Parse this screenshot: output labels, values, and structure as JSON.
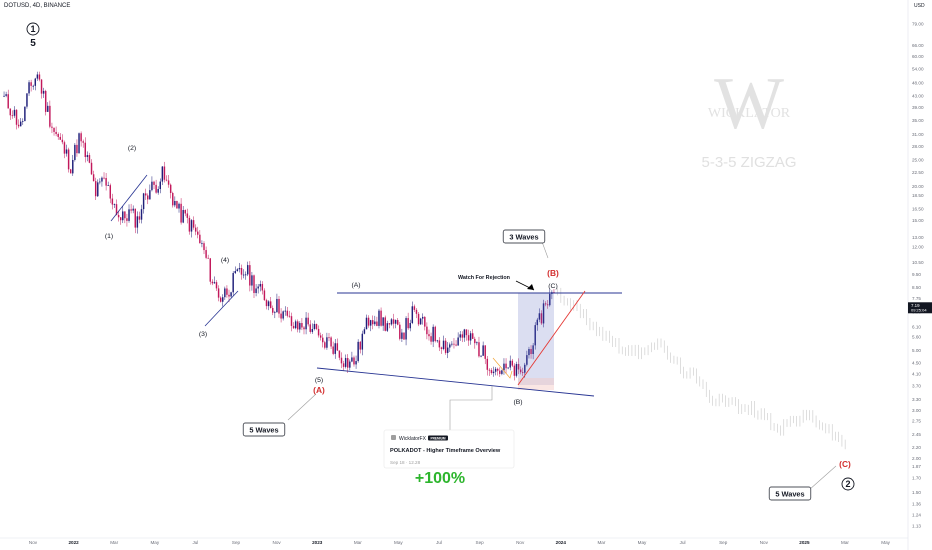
{
  "header": {
    "symbol": "DOTUSD, 4D, BINANCE",
    "currency": "USD"
  },
  "watermark": {
    "brand": "WICKLATOR",
    "pattern": "5-3-5 ZIGZAG"
  },
  "colors": {
    "bull": "#1f1f7a",
    "bear": "#c2185b",
    "wave_red": "#d32f2f",
    "channel": "#283593",
    "trendline": "#e53935",
    "projection": "#c8c8c8",
    "highlight": "#5c6bc0",
    "pct": "#2db52d",
    "axis_text": "#6a6d78"
  },
  "chart_data": {
    "type": "candlestick",
    "y_scale": "log",
    "price_ticks": [
      "79.00",
      "66.00",
      "60.00",
      "54.00",
      "48.00",
      "43.00",
      "39.00",
      "35.00",
      "31.00",
      "28.00",
      "25.00",
      "22.50",
      "20.00",
      "18.50",
      "16.50",
      "15.00",
      "13.00",
      "12.00",
      "10.50",
      "9.50",
      "8.50",
      "7.75",
      "6.90",
      "6.10",
      "5.60",
      "5.00",
      "4.50",
      "4.10",
      "3.70",
      "3.30",
      "3.00",
      "2.75",
      "2.45",
      "2.20",
      "2.00",
      "1.87",
      "1.70",
      "1.50",
      "1.36",
      "1.24",
      "1.13"
    ],
    "time_ticks": [
      "Nov",
      "2022",
      "Mar",
      "May",
      "Jul",
      "Sep",
      "Nov",
      "2023",
      "Mar",
      "May",
      "Jul",
      "Sep",
      "Nov",
      "2024",
      "Mar",
      "May",
      "Jul",
      "Sep",
      "Nov",
      "2025",
      "Mar",
      "May"
    ],
    "current_price": "7.19",
    "countdown": "09:25:04",
    "historical_close": [
      42,
      38,
      33,
      45,
      52,
      40,
      32,
      28,
      24,
      30,
      25,
      19,
      21,
      18,
      15,
      16,
      15,
      19,
      20,
      22,
      19,
      16,
      15,
      13.5,
      11.5,
      9,
      7.8,
      8.5,
      9.4,
      9.8,
      8.8,
      8,
      7.4,
      7.2,
      6.5,
      6,
      6.3,
      6.1,
      5.3,
      5.4,
      5,
      4.55,
      4.5,
      5.6,
      6.8,
      6.5,
      6.2,
      6,
      5.9,
      6.8,
      6.3,
      5.8,
      5.6,
      5.2,
      5.3,
      5.6,
      5.5,
      5.1,
      4.6,
      4.3,
      4.2,
      4.3,
      4.0,
      5.0,
      6.0,
      7.6,
      8.1
    ],
    "projection_close": [
      8.2,
      7.6,
      7,
      6.5,
      6.0,
      5.6,
      5.3,
      5.0,
      4.9,
      5.1,
      5.3,
      5.0,
      4.5,
      4.2,
      4.0,
      3.6,
      3.3,
      3.35,
      3.2,
      3.0,
      3.05,
      2.95,
      2.7,
      2.6,
      2.75,
      2.8,
      2.85,
      2.7,
      2.5,
      2.35,
      2.2
    ],
    "annotations": [
      {
        "label": "1",
        "kind": "circled"
      },
      {
        "label": "5",
        "kind": "bold"
      },
      {
        "label": "(1)"
      },
      {
        "label": "(2)"
      },
      {
        "label": "(3)"
      },
      {
        "label": "(4)"
      },
      {
        "label": "(5)"
      },
      {
        "label": "(A)",
        "kind": "red"
      },
      {
        "label": "(A)"
      },
      {
        "label": "(B)"
      },
      {
        "label": "(C)"
      },
      {
        "label": "(B)",
        "kind": "red"
      },
      {
        "label": "3 Waves",
        "kind": "box"
      },
      {
        "label": "Watch For Rejection"
      },
      {
        "label": "5 Waves",
        "kind": "box"
      },
      {
        "label": "(C)",
        "kind": "red"
      },
      {
        "label": "5 Waves",
        "kind": "box"
      },
      {
        "label": "2",
        "kind": "circled"
      },
      {
        "label": "+100%",
        "kind": "percent"
      }
    ],
    "linked_idea": {
      "author": "WicklatorFX",
      "badge": "PREMIUM",
      "title": "POLKADOT - Higher Timeframe Overview",
      "meta": "Sep 18 · 12.28"
    }
  }
}
